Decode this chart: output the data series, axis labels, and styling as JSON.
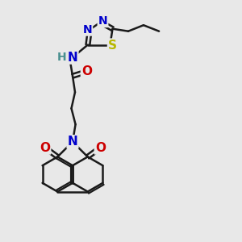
{
  "bg_color": "#e8e8e8",
  "bond_color": "#1a1a1a",
  "bond_width": 1.8,
  "fig_size": [
    3.0,
    3.0
  ],
  "dpi": 100,
  "atoms": {
    "N_blue": "#0000cc",
    "O_red": "#cc0000",
    "S_yellow": "#b8b800",
    "H_teal": "#4a9090",
    "C_black": "#1a1a1a"
  },
  "font_size_atom": 10,
  "xlim": [
    0,
    10
  ],
  "ylim": [
    0,
    10
  ]
}
